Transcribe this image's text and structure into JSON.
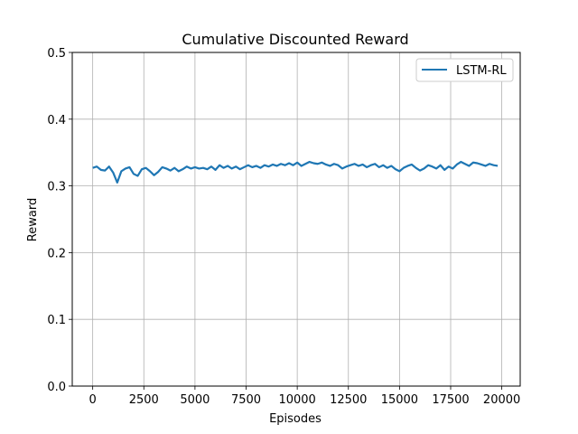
{
  "chart_data": {
    "type": "line",
    "title": "Cumulative Discounted Reward",
    "xlabel": "Episodes",
    "ylabel": "Reward",
    "xlim": [
      -1000,
      20900
    ],
    "ylim": [
      0,
      0.5
    ],
    "xticks": [
      0,
      2500,
      5000,
      7500,
      10000,
      12500,
      15000,
      17500,
      20000
    ],
    "yticks": [
      0.0,
      0.1,
      0.2,
      0.3,
      0.4,
      0.5
    ],
    "xtick_labels": [
      "0",
      "2500",
      "5000",
      "7500",
      "10000",
      "12500",
      "15000",
      "17500",
      "20000"
    ],
    "ytick_labels": [
      "0.0",
      "0.1",
      "0.2",
      "0.3",
      "0.4",
      "0.5"
    ],
    "grid": true,
    "legend_position": "top-right",
    "series": [
      {
        "name": "LSTM-RL",
        "color": "#1f77b4",
        "x": [
          0,
          200,
          400,
          600,
          800,
          1000,
          1200,
          1400,
          1600,
          1800,
          2000,
          2200,
          2400,
          2600,
          2800,
          3000,
          3200,
          3400,
          3600,
          3800,
          4000,
          4200,
          4400,
          4600,
          4800,
          5000,
          5200,
          5400,
          5600,
          5800,
          6000,
          6200,
          6400,
          6600,
          6800,
          7000,
          7200,
          7400,
          7600,
          7800,
          8000,
          8200,
          8400,
          8600,
          8800,
          9000,
          9200,
          9400,
          9600,
          9800,
          10000,
          10200,
          10400,
          10600,
          10800,
          11000,
          11200,
          11400,
          11600,
          11800,
          12000,
          12200,
          12400,
          12600,
          12800,
          13000,
          13200,
          13400,
          13600,
          13800,
          14000,
          14200,
          14400,
          14600,
          14800,
          15000,
          15200,
          15400,
          15600,
          15800,
          16000,
          16200,
          16400,
          16600,
          16800,
          17000,
          17200,
          17400,
          17600,
          17800,
          18000,
          18200,
          18400,
          18600,
          18800,
          19000,
          19200,
          19400,
          19600,
          19800
        ],
        "y": [
          0.327,
          0.329,
          0.324,
          0.323,
          0.329,
          0.32,
          0.305,
          0.322,
          0.326,
          0.328,
          0.318,
          0.315,
          0.325,
          0.327,
          0.322,
          0.316,
          0.321,
          0.328,
          0.326,
          0.323,
          0.327,
          0.322,
          0.325,
          0.329,
          0.326,
          0.328,
          0.326,
          0.327,
          0.325,
          0.329,
          0.324,
          0.331,
          0.327,
          0.33,
          0.326,
          0.329,
          0.325,
          0.328,
          0.331,
          0.328,
          0.33,
          0.327,
          0.331,
          0.329,
          0.332,
          0.33,
          0.333,
          0.331,
          0.334,
          0.331,
          0.335,
          0.33,
          0.333,
          0.336,
          0.334,
          0.333,
          0.335,
          0.332,
          0.33,
          0.333,
          0.331,
          0.326,
          0.329,
          0.331,
          0.333,
          0.33,
          0.332,
          0.328,
          0.331,
          0.333,
          0.328,
          0.331,
          0.327,
          0.33,
          0.325,
          0.322,
          0.327,
          0.33,
          0.332,
          0.327,
          0.323,
          0.326,
          0.331,
          0.329,
          0.326,
          0.331,
          0.324,
          0.329,
          0.326,
          0.332,
          0.336,
          0.333,
          0.33,
          0.335,
          0.334,
          0.332,
          0.33,
          0.333,
          0.331,
          0.33
        ]
      }
    ]
  }
}
